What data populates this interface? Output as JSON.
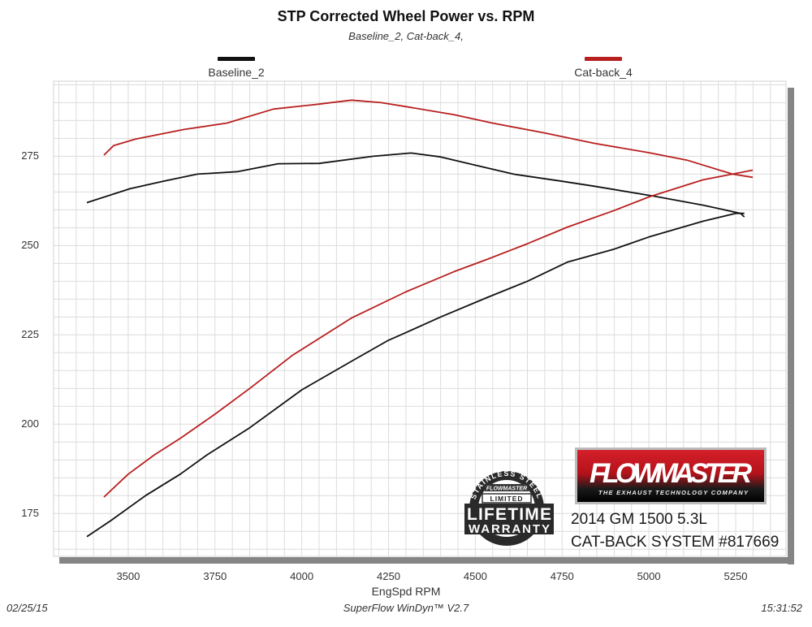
{
  "chart_data": {
    "type": "line",
    "title": "STP Corrected Wheel Power vs. RPM",
    "subtitle": "Baseline_2, Cat-back_4,",
    "xlabel": "EngSpd RPM",
    "ylabel": "",
    "xlim": [
      3285,
      5395
    ],
    "ylim": [
      163,
      296
    ],
    "xticks": [
      3500,
      3750,
      4000,
      4250,
      4500,
      4750,
      5000,
      5250
    ],
    "yticks": [
      175,
      200,
      225,
      250,
      275
    ],
    "grid": true,
    "grid_minor_x_step": 50,
    "grid_minor_y_step": 5,
    "legend_placement": "top",
    "series": [
      {
        "name": "Baseline_2",
        "color": "#111111",
        "curves": [
          {
            "x": [
              3381,
              3505,
              3600,
              3699,
              3816,
              3932,
              4050,
              4206,
              4315,
              4400,
              4500,
              4610,
              4750,
              4843,
              5016,
              5156,
              5264,
              5275
            ],
            "y": [
              262,
              265.9,
              268,
              270,
              270.7,
              272.9,
              273,
              275,
              275.9,
              274.8,
              272.5,
              270,
              268,
              266.6,
              263.8,
              261.3,
              259,
              258
            ]
          },
          {
            "x": [
              3381,
              3450,
              3550,
              3650,
              3727,
              3850,
              4000,
              4150,
              4250,
              4299,
              4400,
              4533,
              4650,
              4766,
              4900,
              5000,
              5156,
              5250,
              5275
            ],
            "y": [
              168.5,
              173,
              180,
              186,
              191.4,
              199,
              209.6,
              218,
              223.5,
              225.6,
              230,
              235.4,
              240,
              245.4,
              249,
              252.4,
              256.8,
              259,
              259
            ]
          }
        ]
      },
      {
        "name": "Cat-back_4",
        "color": "#b81f1f",
        "curves": [
          {
            "x": [
              3430,
              3458,
              3521,
              3661,
              3785,
              3918,
              4050,
              4143,
              4229,
              4299,
              4439,
              4549,
              4700,
              4843,
              5000,
              5110,
              5241,
              5299
            ],
            "y": [
              275.3,
              278,
              279.8,
              282.5,
              284.3,
              288.2,
              289.6,
              290.7,
              290,
              288.9,
              286.6,
              284.3,
              281.5,
              278.6,
              276,
              273.9,
              270,
              269.1
            ]
          },
          {
            "x": [
              3430,
              3500,
              3575,
              3650,
              3750,
              3850,
              3972,
              4050,
              4143,
              4299,
              4439,
              4533,
              4650,
              4766,
              4900,
              5000,
              5156,
              5299
            ],
            "y": [
              179.6,
              186,
              191.4,
              196,
              202.8,
              210,
              219.2,
              224,
              229.7,
              237,
              242.7,
              246.1,
              250.5,
              255.2,
              259.8,
              263.6,
              268.4,
              271.1
            ]
          }
        ]
      }
    ]
  },
  "footer": {
    "date": "02/25/15",
    "software": "SuperFlow WinDyn™ V2.7",
    "time": "15:31:52"
  },
  "info": {
    "line1": "2014 GM 1500 5.3L",
    "line2": "CAT-BACK SYSTEM #817669"
  },
  "logos": {
    "flowmaster": "FLOWMASTER",
    "flowmaster_tagline": "THE EXHAUST TECHNOLOGY COMPANY",
    "warranty_ring": "STAINLESS STEEL",
    "warranty_brand": "FLOWMASTER",
    "warranty_limited": "LIMITED",
    "warranty_line1": "LIFETIME",
    "warranty_line2": "WARRANTY"
  }
}
